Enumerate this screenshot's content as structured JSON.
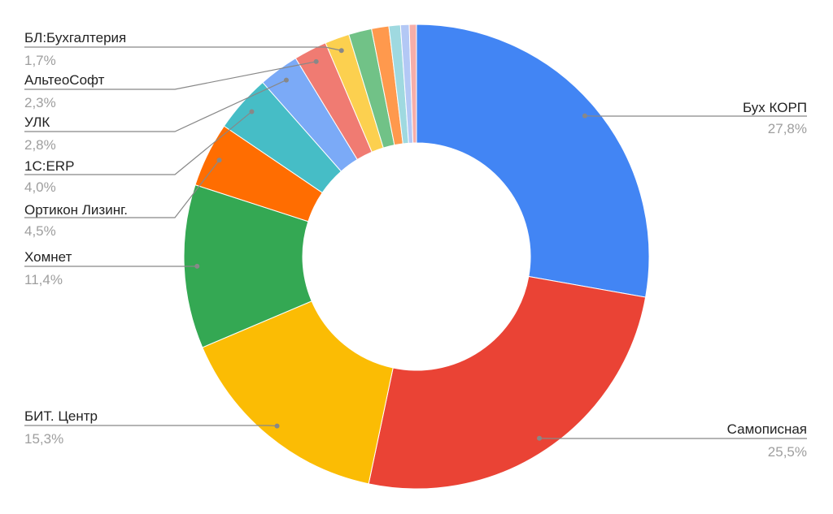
{
  "chart_data": {
    "type": "pie",
    "categories": [
      "Бух КОРП",
      "Самописная",
      "БИТ. Центр",
      "Хомнет",
      "Ортикон Лизинг.",
      "1С:ERP",
      "УЛК",
      "АльтеоСофт",
      "БЛ:Бухгалтерия",
      null,
      null,
      null,
      null,
      null
    ],
    "values": [
      27.8,
      25.5,
      15.3,
      11.4,
      4.5,
      4.0,
      2.8,
      2.3,
      1.7,
      1.6,
      1.2,
      0.8,
      0.6,
      0.5
    ],
    "value_labels": [
      "27,8%",
      "25,5%",
      "15,3%",
      "11,4%",
      "4,5%",
      "4,0%",
      "2,8%",
      "2,3%",
      "1,7%",
      null,
      null,
      null,
      null,
      null
    ],
    "colors": [
      "#4285f4",
      "#ea4335",
      "#fbbc04",
      "#34a853",
      "#ff6d01",
      "#46bdc6",
      "#7baaf7",
      "#f07b72",
      "#fcd04f",
      "#71c287",
      "#ff994d",
      "#9fd9e0",
      "#b3c8f5",
      "#f6aea9"
    ],
    "donut": true
  }
}
